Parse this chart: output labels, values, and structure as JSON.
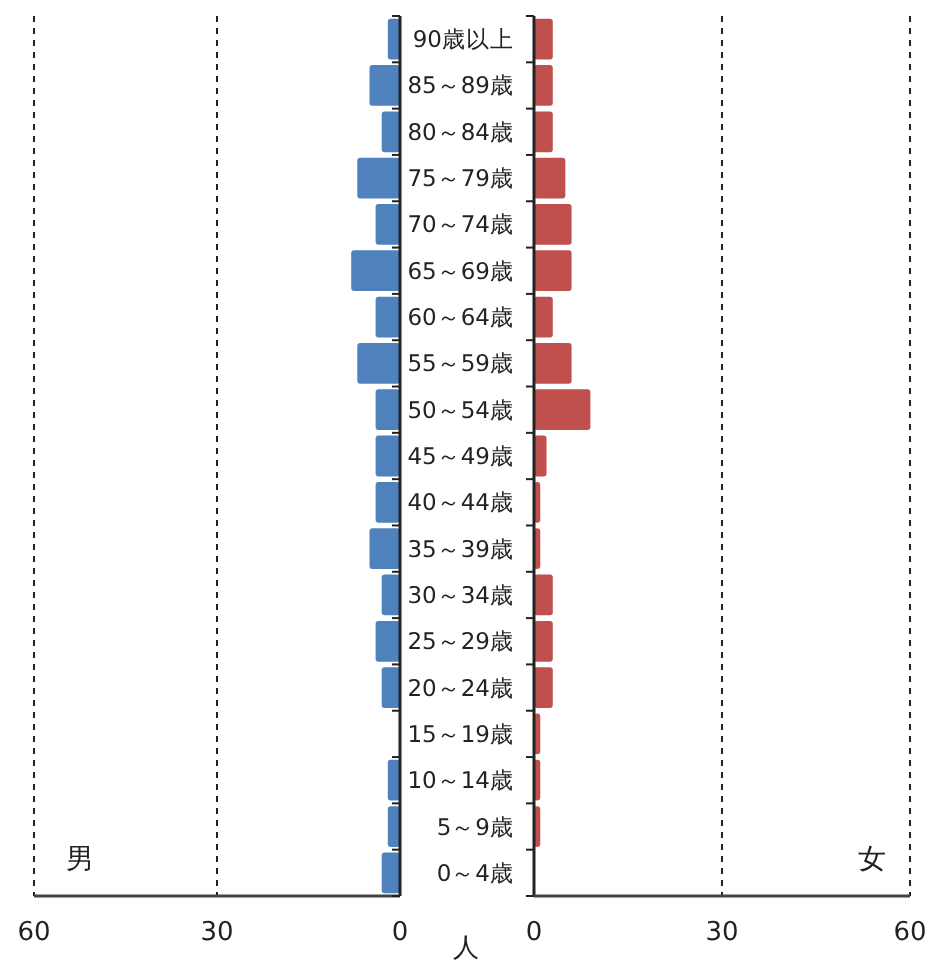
{
  "chart_data": [
    {
      "type": "bar",
      "orientation": "horizontal",
      "xlabel": "人",
      "categories": [
        "90歳以上",
        "85～89歳",
        "80～84歳",
        "75～79歳",
        "70～74歳",
        "65～69歳",
        "60～64歳",
        "55～59歳",
        "50～54歳",
        "45～49歳",
        "40～44歳",
        "35～39歳",
        "30～34歳",
        "25～29歳",
        "20～24歳",
        "15～19歳",
        "10～14歳",
        "5～9歳",
        "0～4歳"
      ],
      "xlim": [
        60,
        0
      ],
      "xticks": [
        60,
        30,
        0
      ],
      "grid": "x",
      "series": [
        {
          "name": "男",
          "color": "#4f81bd",
          "values": [
            2,
            5,
            3,
            7,
            4,
            8,
            4,
            7,
            4,
            4,
            4,
            5,
            3,
            4,
            3,
            0,
            2,
            2,
            3
          ]
        }
      ]
    },
    {
      "type": "bar",
      "orientation": "horizontal",
      "xlim": [
        0,
        60
      ],
      "xticks": [
        0,
        30,
        60
      ],
      "grid": "x",
      "tick_labels": "x",
      "series": [
        {
          "name": "女",
          "color": "#c0504d",
          "values": [
            3,
            3,
            3,
            5,
            6,
            6,
            3,
            6,
            9,
            2,
            1,
            1,
            3,
            3,
            3,
            1,
            1,
            1,
            0
          ]
        }
      ]
    }
  ]
}
